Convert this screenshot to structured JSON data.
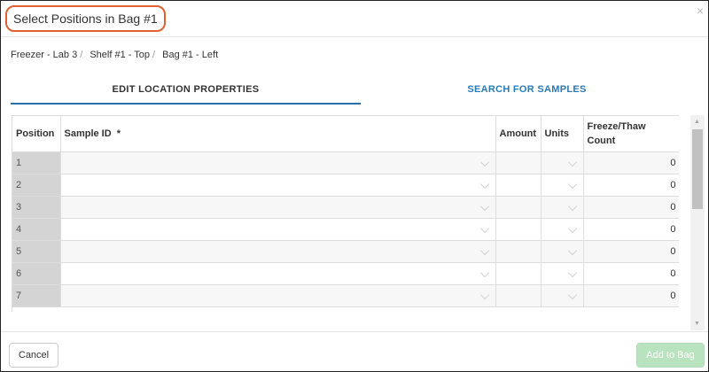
{
  "dialog": {
    "title": "Select Positions in Bag #1",
    "close_label": "×"
  },
  "breadcrumb": [
    "Freezer - Lab 3",
    "Shelf #1 - Top",
    "Bag #1 - Left"
  ],
  "breadcrumb_sep": "/",
  "tabs": [
    {
      "label": "EDIT LOCATION PROPERTIES",
      "active": true
    },
    {
      "label": "SEARCH FOR SAMPLES",
      "active": false
    }
  ],
  "table": {
    "columns": [
      "Position",
      "Sample ID  *",
      "Amount",
      "Units",
      "Freeze/Thaw Count"
    ],
    "rows": [
      {
        "position": "1",
        "sample_id": "",
        "amount": "",
        "units": "",
        "count": "0"
      },
      {
        "position": "2",
        "sample_id": "",
        "amount": "",
        "units": "",
        "count": "0"
      },
      {
        "position": "3",
        "sample_id": "",
        "amount": "",
        "units": "",
        "count": "0"
      },
      {
        "position": "4",
        "sample_id": "",
        "amount": "",
        "units": "",
        "count": "0"
      },
      {
        "position": "5",
        "sample_id": "",
        "amount": "",
        "units": "",
        "count": "0"
      },
      {
        "position": "6",
        "sample_id": "",
        "amount": "",
        "units": "",
        "count": "0"
      },
      {
        "position": "7",
        "sample_id": "",
        "amount": "",
        "units": "",
        "count": "0"
      }
    ]
  },
  "footer": {
    "cancel_label": "Cancel",
    "add_label": "Add to Bag",
    "add_disabled": true
  },
  "colors": {
    "highlight": "#e0602f",
    "accent": "#2a6fa5",
    "add_button": "#b9e2bf"
  }
}
